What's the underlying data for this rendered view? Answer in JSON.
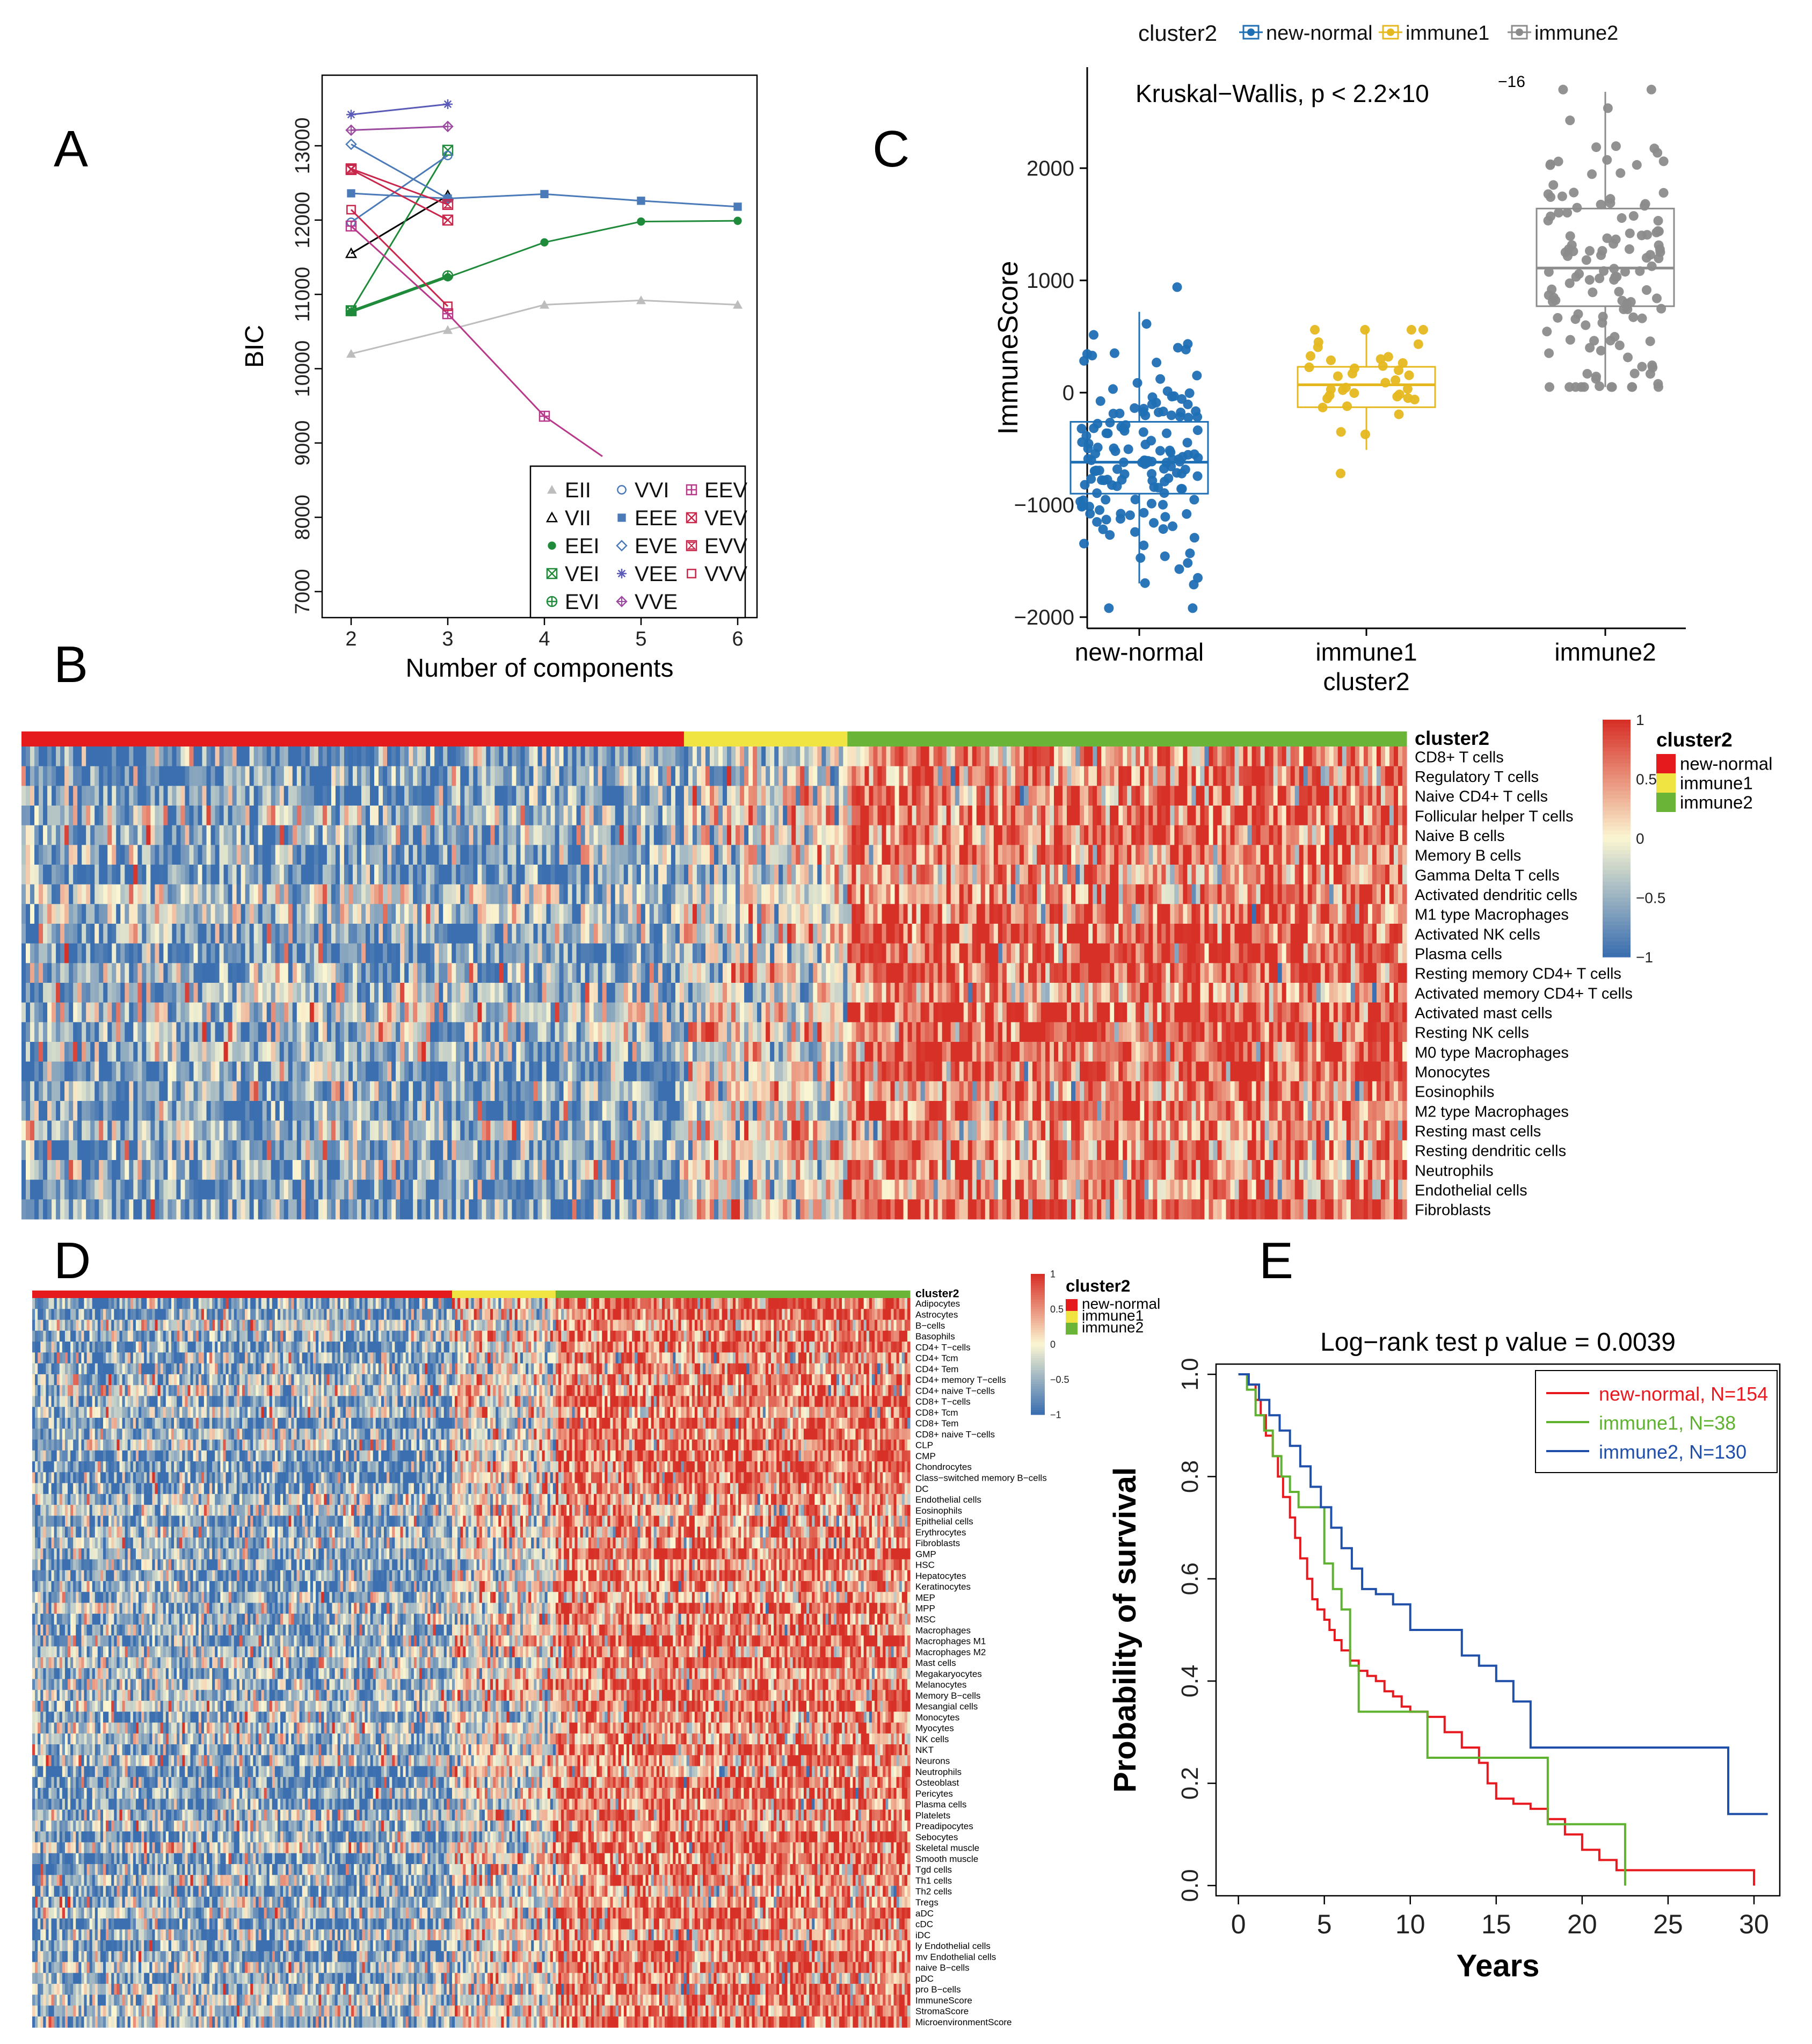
{
  "panel_labels": {
    "A": "A",
    "B": "B",
    "C": "C",
    "D": "D",
    "E": "E"
  },
  "colors": {
    "new_normal": "#e41a1c",
    "immune1": "#f0e442",
    "immune2": "#6ab437",
    "box_new_normal": "#1f6fb4",
    "box_immune1": "#e6b820",
    "box_immune2": "#8c8c8c",
    "heat_low": "#3b6fb0",
    "heat_mid": "#fbf6d2",
    "heat_high": "#d73027",
    "km_new_normal": "#e8181f",
    "km_immune1": "#5fb230",
    "km_immune2": "#1f4fa8"
  },
  "chart_data": [
    {
      "id": "A",
      "type": "line",
      "title": "",
      "xlabel": "Number of components",
      "ylabel": "BIC",
      "xticks": [
        "2",
        "3",
        "4",
        "5",
        "6"
      ],
      "yticks": [
        "7000",
        "8000",
        "9000",
        "10000",
        "11000",
        "12000",
        "13000"
      ],
      "xlim": [
        1.7,
        6.2
      ],
      "ylim": [
        6650,
        13950
      ],
      "series": [
        {
          "name": "EII",
          "color": "#bdbdbd",
          "marker": "triangle-filled",
          "x": [
            2,
            3,
            4,
            5,
            6
          ],
          "y": [
            10200,
            10520,
            10860,
            10920,
            10860
          ]
        },
        {
          "name": "VII",
          "color": "#000000",
          "marker": "triangle-open",
          "x": [
            2,
            3
          ],
          "y": [
            11550,
            12330
          ]
        },
        {
          "name": "EEI",
          "color": "#1f8a3a",
          "marker": "circle-filled",
          "x": [
            2,
            3,
            4,
            5,
            6
          ],
          "y": [
            10760,
            11230,
            11700,
            11980,
            11990
          ]
        },
        {
          "name": "VEI",
          "color": "#1f8a3a",
          "marker": "square-x",
          "x": [
            2,
            3
          ],
          "y": [
            10780,
            12940
          ]
        },
        {
          "name": "EVI",
          "color": "#1f8a3a",
          "marker": "circle-plus",
          "x": [
            2,
            3
          ],
          "y": [
            10780,
            11250
          ]
        },
        {
          "name": "VVI",
          "color": "#4a7ab8",
          "marker": "circle-open",
          "x": [
            2,
            3
          ],
          "y": [
            11970,
            12870
          ]
        },
        {
          "name": "EEE",
          "color": "#4a7ab8",
          "marker": "square-filled",
          "x": [
            2,
            3,
            4,
            5,
            6
          ],
          "y": [
            12360,
            12290,
            12350,
            12260,
            12180
          ]
        },
        {
          "name": "EVE",
          "color": "#4a7ab8",
          "marker": "diamond-open",
          "x": [
            2,
            3
          ],
          "y": [
            13020,
            12290
          ]
        },
        {
          "name": "VEE",
          "color": "#5a5ab8",
          "marker": "asterisk",
          "x": [
            2,
            3
          ],
          "y": [
            13420,
            13560
          ]
        },
        {
          "name": "VVE",
          "color": "#9b4aa0",
          "marker": "diamond-plus",
          "x": [
            2,
            3
          ],
          "y": [
            13210,
            13260
          ]
        },
        {
          "name": "EEV",
          "color": "#b8388a",
          "marker": "square-plus",
          "x": [
            2,
            3,
            4,
            4.6
          ],
          "y": [
            11920,
            10740,
            9360,
            8820
          ]
        },
        {
          "name": "VEV",
          "color": "#c8264a",
          "marker": "square-x",
          "x": [
            2,
            3
          ],
          "y": [
            12680,
            12000
          ]
        },
        {
          "name": "EVV",
          "color": "#c8264a",
          "marker": "hourglass",
          "x": [
            2,
            3
          ],
          "y": [
            12690,
            12210
          ]
        },
        {
          "name": "VVV",
          "color": "#c8264a",
          "marker": "square-open",
          "x": [
            2,
            3
          ],
          "y": [
            12140,
            10840
          ]
        }
      ],
      "legend": [
        "EII",
        "VII",
        "EEI",
        "VEI",
        "EVI",
        "VVI",
        "EEE",
        "EVE",
        "VEE",
        "VVE",
        "EEV",
        "VEV",
        "EVV",
        "VVV"
      ]
    },
    {
      "id": "C",
      "type": "box",
      "title": "",
      "legend_title": "cluster2",
      "legend": [
        "new-normal",
        "immune1",
        "immune2"
      ],
      "annotation": "Kruskal−Wallis, p < 2.2×10",
      "annotation_exp": "−16",
      "xlabel": "cluster2",
      "ylabel": "ImmuneScore",
      "categories": [
        "new-normal",
        "immune1",
        "immune2"
      ],
      "yticks": [
        "−2000",
        "−1000",
        "0",
        "1000",
        "2000"
      ],
      "ylim": [
        -2100,
        2900
      ],
      "boxes": [
        {
          "name": "new-normal",
          "q1": -900,
          "median": -620,
          "q3": -260,
          "whisker_low": -1700,
          "whisker_high": 720,
          "n": 154,
          "point_min": -1920,
          "point_max": 940
        },
        {
          "name": "immune1",
          "q1": -130,
          "median": 70,
          "q3": 230,
          "whisker_low": -510,
          "whisker_high": 560,
          "n": 38,
          "point_min": -720,
          "point_max": 560
        },
        {
          "name": "immune2",
          "q1": 770,
          "median": 1110,
          "q3": 1640,
          "whisker_low": 50,
          "whisker_high": 2680,
          "n": 130,
          "point_min": 50,
          "point_max": 2700
        }
      ]
    },
    {
      "id": "B",
      "type": "heatmap",
      "annotation_title": "cluster2",
      "groups": [
        {
          "name": "new-normal",
          "n": 154
        },
        {
          "name": "immune1",
          "n": 38
        },
        {
          "name": "immune2",
          "n": 130
        }
      ],
      "rows": [
        "CD8+ T cells",
        "Regulatory T cells",
        "Naive CD4+ T cells",
        "Follicular helper T cells",
        "Naive B cells",
        "Memory B cells",
        "Gamma Delta T cells",
        "Activated dendritic cells",
        "M1 type Macrophages",
        "Activated NK cells",
        "Plasma cells",
        "Resting memory CD4+ T cells",
        "Activated memory CD4+ T cells",
        "Activated mast cells",
        "Resting NK cells",
        "M0 type Macrophages",
        "Monocytes",
        "Eosinophils",
        "M2 type Macrophages",
        "Resting mast cells",
        "Resting dendritic cells",
        "Neutrophils",
        "Endothelial cells",
        "Fibroblasts"
      ],
      "scale": {
        "min": -1,
        "max": 1,
        "ticks": [
          "1",
          "0.5",
          "0",
          "−0.5",
          "−1"
        ]
      },
      "legend_title": "cluster2",
      "legend": [
        "new-normal",
        "immune1",
        "immune2"
      ]
    },
    {
      "id": "D",
      "type": "heatmap",
      "annotation_title": "cluster2",
      "groups": [
        {
          "name": "new-normal",
          "n": 154
        },
        {
          "name": "immune1",
          "n": 38
        },
        {
          "name": "immune2",
          "n": 130
        }
      ],
      "rows": [
        "Adipocytes",
        "Astrocytes",
        "B−cells",
        "Basophils",
        "CD4+ T−cells",
        "CD4+ Tcm",
        "CD4+ Tem",
        "CD4+ memory T−cells",
        "CD4+ naive T−cells",
        "CD8+ T−cells",
        "CD8+ Tcm",
        "CD8+ Tem",
        "CD8+ naive T−cells",
        "CLP",
        "CMP",
        "Chondrocytes",
        "Class−switched memory B−cells",
        "DC",
        "Endothelial cells",
        "Eosinophils",
        "Epithelial cells",
        "Erythrocytes",
        "Fibroblasts",
        "GMP",
        "HSC",
        "Hepatocytes",
        "Keratinocytes",
        "MEP",
        "MPP",
        "MSC",
        "Macrophages",
        "Macrophages M1",
        "Macrophages M2",
        "Mast cells",
        "Megakaryocytes",
        "Melanocytes",
        "Memory B−cells",
        "Mesangial cells",
        "Monocytes",
        "Myocytes",
        "NK cells",
        "NKT",
        "Neurons",
        "Neutrophils",
        "Osteoblast",
        "Pericytes",
        "Plasma cells",
        "Platelets",
        "Preadipocytes",
        "Sebocytes",
        "Skeletal muscle",
        "Smooth muscle",
        "Tgd cells",
        "Th1 cells",
        "Th2 cells",
        "Tregs",
        "aDC",
        "cDC",
        "iDC",
        "ly Endothelial cells",
        "mv Endothelial cells",
        "naive B−cells",
        "pDC",
        "pro B−cells",
        "ImmuneScore",
        "StromaScore",
        "MicroenvironmentScore"
      ],
      "scale": {
        "min": -1,
        "max": 1,
        "ticks": [
          "1",
          "0.5",
          "0",
          "−0.5",
          "−1"
        ]
      },
      "legend_title": "cluster2",
      "legend": [
        "new-normal",
        "immune1",
        "immune2"
      ]
    },
    {
      "id": "E",
      "type": "line",
      "subtype": "kaplan-meier",
      "title": "Log−rank test p value = 0.0039",
      "xlabel": "Years",
      "ylabel": "Probability of survival",
      "xticks": [
        "0",
        "5",
        "10",
        "15",
        "20",
        "25",
        "30"
      ],
      "yticks": [
        "0.0",
        "0.2",
        "0.4",
        "0.6",
        "0.8",
        "1.0"
      ],
      "xlim": [
        -1.3,
        31.5
      ],
      "ylim": [
        -0.02,
        1.02
      ],
      "series": [
        {
          "name": "new-normal, N=154",
          "color": "#e8181f",
          "x": [
            0,
            0.6,
            1,
            1.3,
            1.6,
            2,
            2.3,
            2.6,
            3,
            3.3,
            3.6,
            4,
            4.3,
            4.6,
            5,
            5.3,
            5.6,
            6,
            6.5,
            7,
            7.5,
            8,
            8.5,
            9,
            9.5,
            10,
            11,
            12,
            13,
            14,
            14.5,
            15,
            16,
            17,
            18,
            19,
            20,
            21,
            22,
            25,
            29,
            30
          ],
          "y": [
            1.0,
            0.98,
            0.95,
            0.92,
            0.88,
            0.84,
            0.8,
            0.76,
            0.72,
            0.68,
            0.64,
            0.6,
            0.56,
            0.54,
            0.52,
            0.5,
            0.48,
            0.46,
            0.44,
            0.42,
            0.41,
            0.4,
            0.38,
            0.37,
            0.35,
            0.34,
            0.33,
            0.3,
            0.27,
            0.24,
            0.2,
            0.17,
            0.16,
            0.15,
            0.13,
            0.1,
            0.07,
            0.05,
            0.03,
            0.03,
            0.03,
            0.0
          ]
        },
        {
          "name": "immune1, N=38",
          "color": "#5fb230",
          "x": [
            0,
            0.5,
            1,
            1.5,
            2,
            2.5,
            3,
            3.5,
            4,
            5,
            5.5,
            6,
            6.5,
            7,
            10,
            11,
            12,
            14,
            18,
            22.5,
            22.5
          ],
          "y": [
            1.0,
            0.97,
            0.92,
            0.89,
            0.84,
            0.8,
            0.77,
            0.74,
            0.74,
            0.63,
            0.58,
            0.54,
            0.43,
            0.34,
            0.34,
            0.25,
            0.25,
            0.25,
            0.12,
            0.12,
            0.0
          ]
        },
        {
          "name": "immune2, N=130",
          "color": "#1f4fa8",
          "x": [
            0,
            0.6,
            1.2,
            1.8,
            2.4,
            3,
            3.6,
            4.2,
            4.8,
            5.4,
            6,
            6.6,
            7.2,
            8,
            9,
            10,
            11,
            12,
            13,
            14,
            15,
            16,
            17,
            18,
            25,
            28.5,
            30.8
          ],
          "y": [
            1.0,
            0.98,
            0.95,
            0.92,
            0.89,
            0.86,
            0.82,
            0.78,
            0.74,
            0.7,
            0.66,
            0.62,
            0.58,
            0.57,
            0.55,
            0.5,
            0.5,
            0.5,
            0.45,
            0.43,
            0.4,
            0.36,
            0.27,
            0.27,
            0.27,
            0.14,
            0.14
          ]
        }
      ],
      "legend": [
        "new-normal, N=154",
        "immune1, N=38",
        "immune2, N=130"
      ]
    }
  ]
}
